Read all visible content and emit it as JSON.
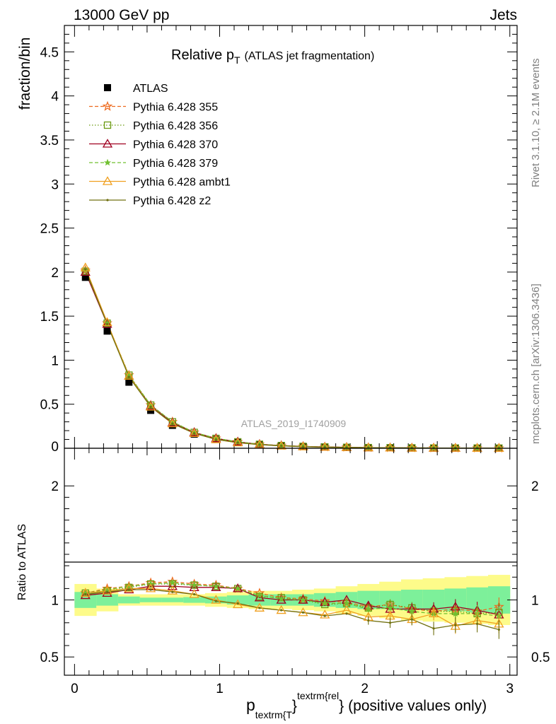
{
  "header": {
    "left": "13000 GeV pp",
    "right": "Jets"
  },
  "title": {
    "main_p": "Relative p",
    "main_sub": "T",
    "detail": "(ATLAS jet fragmentation)"
  },
  "side_labels": {
    "rivet": "Rivet 3.1.10, ≥ 2.1M events",
    "source": "mcplots.cern.ch [arXiv:1306.3436]"
  },
  "analysis_id": "ATLAS_2019_I1740909",
  "axes": {
    "ylabel_top": "fraction/bin",
    "ylabel_bottom": "Ratio to ATLAS",
    "xlabel_p": "p",
    "xlabel_sub": "textrm{T",
    "xlabel_sup": "textrm{rel",
    "xlabel_brace1": "}",
    "xlabel_brace2": "}",
    "xlabel_rest": "(positive values only)"
  },
  "colors": {
    "ATLAS": "#000000",
    "p355": "#ee6a1e",
    "p356": "#6b9a12",
    "p370": "#a00020",
    "p379": "#70c030",
    "ambt1": "#f0a020",
    "z2": "#707010",
    "band_inner": "#7df09a",
    "band_outer": "#fdfb8a"
  },
  "chart_data": [
    {
      "type": "line",
      "panel": "main",
      "title": "Relative pT (ATLAS jet fragmentation)",
      "xlabel": "ptextrm{T}^{textrm{rel}} (positive values only)",
      "ylabel": "fraction/bin",
      "xlim": [
        -0.07,
        3.05
      ],
      "ylim": [
        0,
        4.8
      ],
      "x_ticks": [
        0,
        1,
        2,
        3
      ],
      "y_ticks": [
        0.5,
        1,
        1.5,
        2,
        2.5,
        3,
        3.5,
        4,
        4.5
      ],
      "legend_position": "top-left",
      "x": [
        0.075,
        0.225,
        0.375,
        0.525,
        0.675,
        0.825,
        0.975,
        1.125,
        1.275,
        1.425,
        1.575,
        1.725,
        1.875,
        2.025,
        2.175,
        2.325,
        2.475,
        2.625,
        2.775,
        2.925
      ],
      "series": [
        {
          "name": "ATLAS",
          "key": "ATLAS",
          "marker": "square",
          "values": [
            1.94,
            1.33,
            0.75,
            0.43,
            0.26,
            0.16,
            0.1,
            0.066,
            0.044,
            0.03,
            0.021,
            0.015,
            0.011,
            0.008,
            0.006,
            0.0045,
            0.0035,
            0.0027,
            0.0021,
            0.0017
          ]
        },
        {
          "name": "Pythia 6.428 355",
          "key": "p355",
          "marker": "star",
          "dash": "5,3",
          "values": [
            2.02,
            1.42,
            0.83,
            0.49,
            0.3,
            0.18,
            0.113,
            0.073,
            0.046,
            0.031,
            0.021,
            0.015,
            0.011,
            0.0076,
            0.0057,
            0.0042,
            0.0031,
            0.0024,
            0.0019,
            0.0015
          ]
        },
        {
          "name": "Pythia 6.428 356",
          "key": "p356",
          "marker": "open-square",
          "dash": "1.5,2.5",
          "values": [
            2.01,
            1.42,
            0.83,
            0.49,
            0.3,
            0.18,
            0.112,
            0.073,
            0.045,
            0.031,
            0.021,
            0.014,
            0.0105,
            0.0075,
            0.0057,
            0.0041,
            0.0031,
            0.0024,
            0.0018,
            0.0015
          ]
        },
        {
          "name": "Pythia 6.428 370",
          "key": "p370",
          "marker": "open-triangle",
          "dash": "",
          "values": [
            2.0,
            1.41,
            0.82,
            0.48,
            0.29,
            0.18,
            0.111,
            0.072,
            0.045,
            0.03,
            0.021,
            0.0146,
            0.011,
            0.0076,
            0.0055,
            0.0041,
            0.0032,
            0.0025,
            0.0019,
            0.0015
          ]
        },
        {
          "name": "Pythia 6.428 379",
          "key": "p379",
          "marker": "small-star",
          "dash": "5,3",
          "values": [
            2.02,
            1.42,
            0.83,
            0.49,
            0.3,
            0.18,
            0.113,
            0.073,
            0.045,
            0.03,
            0.021,
            0.014,
            0.0105,
            0.0073,
            0.0055,
            0.004,
            0.003,
            0.0023,
            0.0018,
            0.0014
          ]
        },
        {
          "name": "Pythia 6.428 ambt1",
          "key": "ambt1",
          "marker": "open-triangle",
          "dash": "",
          "values": [
            2.05,
            1.43,
            0.82,
            0.47,
            0.28,
            0.17,
            0.1,
            0.063,
            0.041,
            0.027,
            0.0187,
            0.013,
            0.01,
            0.0068,
            0.0051,
            0.0035,
            0.0031,
            0.002,
            0.0017,
            0.0013
          ]
        },
        {
          "name": "Pythia 6.428 z2",
          "key": "z2",
          "marker": "dot",
          "dash": "",
          "values": [
            2.03,
            1.41,
            0.81,
            0.47,
            0.28,
            0.17,
            0.1,
            0.064,
            0.041,
            0.027,
            0.0187,
            0.013,
            0.0097,
            0.0067,
            0.0048,
            0.0037,
            0.0026,
            0.0021,
            0.0016,
            0.0013
          ]
        }
      ]
    },
    {
      "type": "line",
      "panel": "ratio",
      "ylabel": "Ratio to ATLAS",
      "ylim": [
        0.34,
        2.33
      ],
      "y_ticks": [
        0.5,
        1,
        2
      ],
      "x_ticks": [
        0,
        1,
        2,
        3
      ],
      "x_edges": [
        0.0,
        0.15,
        0.3,
        0.45,
        0.6,
        0.75,
        0.9,
        1.05,
        1.2,
        1.35,
        1.5,
        1.65,
        1.8,
        1.95,
        2.1,
        2.25,
        2.4,
        2.55,
        2.7,
        2.85,
        3.0
      ],
      "band_inner_half": [
        0.07,
        0.05,
        0.03,
        0.02,
        0.02,
        0.025,
        0.03,
        0.04,
        0.05,
        0.05,
        0.05,
        0.06,
        0.07,
        0.08,
        0.08,
        0.09,
        0.09,
        0.1,
        0.11,
        0.12
      ],
      "band_outer_half": [
        0.14,
        0.1,
        0.05,
        0.05,
        0.05,
        0.05,
        0.06,
        0.07,
        0.08,
        0.08,
        0.09,
        0.1,
        0.12,
        0.14,
        0.16,
        0.18,
        0.19,
        0.2,
        0.21,
        0.22
      ],
      "series": [
        {
          "name": "Pythia 6.428 355",
          "key": "p355",
          "values": [
            1.06,
            1.1,
            1.12,
            1.15,
            1.16,
            1.14,
            1.13,
            1.1,
            1.06,
            1.02,
            1.01,
            0.99,
            0.98,
            0.94,
            0.96,
            0.92,
            0.9,
            0.92,
            0.9,
            0.94
          ]
        },
        {
          "name": "Pythia 6.428 356",
          "key": "p356",
          "values": [
            1.06,
            1.08,
            1.11,
            1.14,
            1.14,
            1.13,
            1.12,
            1.1,
            1.03,
            1.02,
            1.0,
            0.96,
            0.97,
            0.93,
            0.96,
            0.93,
            0.9,
            0.9,
            0.88,
            0.89
          ]
        },
        {
          "name": "Pythia 6.428 370",
          "key": "p370",
          "values": [
            1.04,
            1.06,
            1.09,
            1.12,
            1.12,
            1.11,
            1.11,
            1.1,
            1.02,
            1.0,
            1.0,
            0.98,
            1.0,
            0.95,
            0.92,
            0.92,
            0.92,
            0.94,
            0.91,
            0.87
          ]
        },
        {
          "name": "Pythia 6.428 379",
          "key": "p379",
          "values": [
            1.06,
            1.09,
            1.12,
            1.14,
            1.15,
            1.13,
            1.12,
            1.1,
            1.04,
            1.01,
            1.0,
            0.97,
            0.97,
            0.92,
            0.93,
            0.9,
            0.88,
            0.88,
            0.88,
            0.86
          ]
        },
        {
          "name": "Pythia 6.428 ambt1",
          "key": "ambt1",
          "values": [
            1.06,
            1.08,
            1.1,
            1.1,
            1.08,
            1.05,
            1.0,
            0.96,
            0.93,
            0.91,
            0.89,
            0.87,
            0.91,
            0.85,
            0.86,
            0.83,
            0.88,
            0.77,
            0.82,
            0.79
          ]
        },
        {
          "name": "Pythia 6.428 z2",
          "key": "z2",
          "values": [
            1.05,
            1.07,
            1.09,
            1.09,
            1.07,
            1.05,
            0.99,
            0.97,
            0.93,
            0.91,
            0.89,
            0.86,
            0.88,
            0.82,
            0.8,
            0.83,
            0.75,
            0.78,
            0.79,
            0.74
          ]
        }
      ]
    }
  ]
}
